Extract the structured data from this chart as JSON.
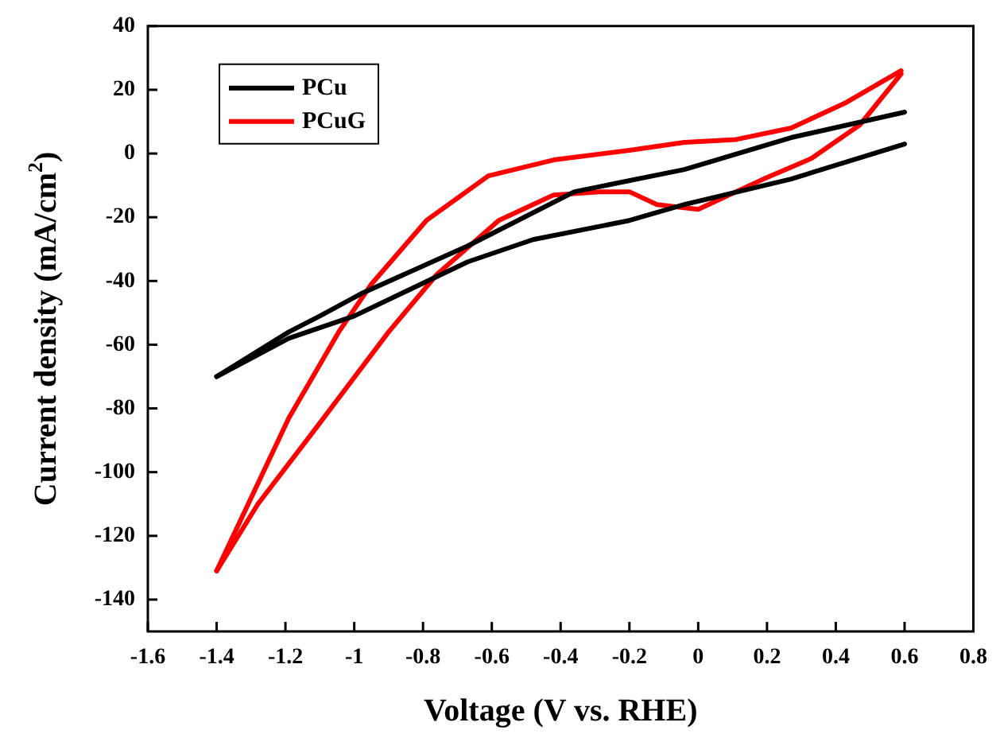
{
  "chart_data": {
    "type": "line",
    "xlabel": "Voltage (V vs. RHE)",
    "ylabel": "Current density (mA/cm$^{2}$)",
    "xlim": [
      -1.6,
      0.8
    ],
    "xticks": [
      -1.6,
      -1.4,
      -1.2,
      -1.0,
      -0.8,
      -0.6,
      -0.4,
      -0.2,
      0.0,
      0.2,
      0.4,
      0.6,
      0.8
    ],
    "ylim": [
      -150,
      40
    ],
    "yticks": [
      -140,
      -120,
      -100,
      -80,
      -60,
      -40,
      -20,
      0,
      20,
      40
    ],
    "legend": "top left",
    "grid": false,
    "marker": "none",
    "line_style": "solid",
    "series": [
      {
        "name": "PCu",
        "color": "#000000",
        "x": [
          -1.4,
          -1.19,
          -1.1,
          -0.98,
          -0.67,
          -0.36,
          -0.04,
          0.27,
          0.6
        ],
        "values": [
          -70,
          -56,
          -51,
          -44,
          -29,
          -12,
          -5,
          5,
          13
        ]
      },
      {
        "color": "#000000",
        "x": [
          -1.4,
          -1.19,
          -1.0,
          -0.67,
          -0.48,
          -0.2,
          -0.04,
          0.27,
          0.6
        ],
        "values": [
          -70,
          -58,
          -51,
          -34,
          -27,
          -21,
          -16,
          -8,
          3
        ]
      },
      {
        "name": "PCuG",
        "color": "#ff0000",
        "x": [
          -1.4,
          -1.19,
          -1.045,
          -0.95,
          -0.79,
          -0.61,
          -0.42,
          -0.2,
          -0.04,
          0.11,
          0.27,
          0.43,
          0.59
        ],
        "values": [
          -131,
          -83,
          -56,
          -41,
          -21,
          -7,
          -2,
          1,
          3.5,
          4.4,
          8,
          16,
          26
        ]
      },
      {
        "color": "#ff0000",
        "x": [
          -1.4,
          -1.28,
          -1.11,
          -0.9,
          -0.76,
          -0.58,
          -0.42,
          -0.28,
          -0.2,
          -0.12,
          0.0,
          0.19,
          0.33,
          0.47,
          0.59
        ],
        "values": [
          -131,
          -110,
          -86,
          -56,
          -38,
          -21,
          -13,
          -12,
          -12,
          -16,
          -17.5,
          -8,
          -1.5,
          9,
          25
        ]
      }
    ]
  }
}
